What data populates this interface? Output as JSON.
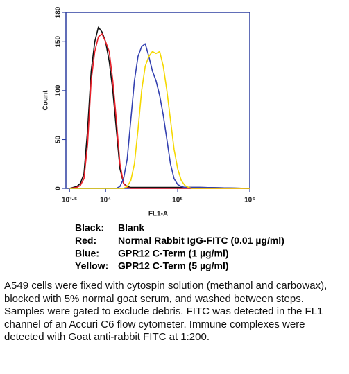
{
  "chart_data": {
    "type": "line",
    "xlabel": "FL1-A",
    "ylabel": "Count",
    "xscale": "log",
    "xlim": [
      2818,
      1000000
    ],
    "xticks": [
      {
        "value": 3162,
        "label": "10³·⁵"
      },
      {
        "value": 10000,
        "label": "10⁴"
      },
      {
        "value": 100000,
        "label": "10⁵"
      },
      {
        "value": 1000000,
        "label": "10⁶"
      }
    ],
    "ylim": [
      0,
      180
    ],
    "yticks": [
      0,
      50,
      100,
      150,
      180
    ],
    "frame_color": "#2d3fa0",
    "x": [
      3162,
      3981,
      4467,
      5012,
      5623,
      6310,
      7079,
      7943,
      8913,
      10000,
      11220,
      12589,
      14125,
      15849,
      17783,
      19953,
      22387,
      25119,
      28184,
      31623,
      35481,
      39811,
      44668,
      50119,
      56234,
      63096,
      70795,
      79433,
      89125,
      100000,
      112202,
      125893,
      141254,
      158489,
      177828,
      199526,
      1000000
    ],
    "series": [
      {
        "legend_key": "Black:",
        "name": "Blank",
        "color": "#111111",
        "values": [
          0,
          2,
          5,
          15,
          60,
          120,
          150,
          165,
          160,
          150,
          130,
          100,
          60,
          20,
          5,
          2,
          1,
          1,
          1,
          1,
          1,
          1,
          1,
          1,
          1,
          1,
          1,
          1,
          1,
          1,
          1,
          1,
          1,
          1,
          1,
          1,
          0
        ]
      },
      {
        "legend_key": "Red:",
        "name": "Normal Rabbit IgG-FITC (0.01 µg/ml)",
        "color": "#e8202a",
        "values": [
          0,
          1,
          3,
          10,
          45,
          110,
          140,
          155,
          158,
          150,
          140,
          110,
          70,
          25,
          5,
          1,
          0,
          0,
          0,
          0,
          0,
          0,
          0,
          0,
          0,
          0,
          0,
          0,
          0,
          0,
          0,
          0,
          0,
          0,
          0,
          0,
          0
        ]
      },
      {
        "legend_key": "Blue:",
        "name": "GPR12 C-Term (1 µg/ml)",
        "color": "#3340b0",
        "values": [
          0,
          0,
          0,
          0,
          0,
          0,
          0,
          0,
          0,
          0,
          0,
          0,
          0,
          2,
          10,
          30,
          70,
          110,
          135,
          145,
          148,
          135,
          120,
          110,
          95,
          75,
          50,
          25,
          10,
          4,
          2,
          1,
          1,
          1,
          1,
          1,
          0
        ]
      },
      {
        "legend_key": "Yellow:",
        "name": "GPR12 C-Term (5 µg/ml)",
        "color": "#f5d800",
        "values": [
          0,
          0,
          0,
          0,
          0,
          0,
          0,
          0,
          0,
          0,
          0,
          0,
          0,
          0,
          0,
          2,
          8,
          25,
          60,
          100,
          125,
          135,
          140,
          138,
          140,
          125,
          100,
          70,
          40,
          20,
          8,
          3,
          1,
          0,
          0,
          0,
          0
        ]
      }
    ],
    "caption": "A549 cells were fixed with cytospin solution (methanol and carbowax), blocked with 5% normal goat serum, and washed between steps. Samples were gated to exclude debris. FITC was detected in the FL1 channel of an Accuri C6 flow cytometer. Immune complexes were detected with Goat anti-rabbit FITC at 1:200."
  }
}
